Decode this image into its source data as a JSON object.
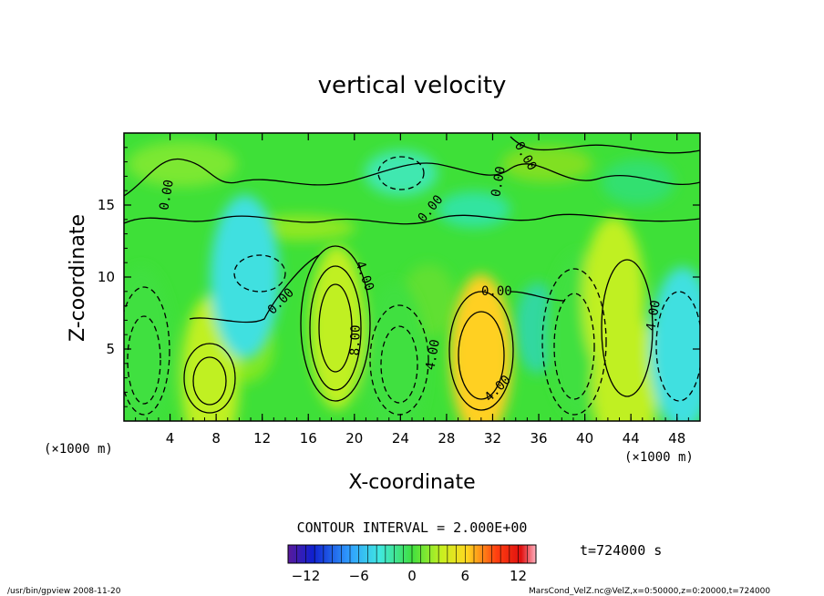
{
  "chart_data": {
    "type": "heatmap",
    "title": "vertical velocity",
    "xlabel": "X-coordinate",
    "ylabel": "Z-coordinate",
    "x_unit": "(×1000 m)",
    "y_unit": "(×1000 m)",
    "xlim": [
      0,
      50
    ],
    "ylim": [
      0,
      20
    ],
    "x_ticks": [
      4,
      8,
      12,
      16,
      20,
      24,
      28,
      32,
      36,
      40,
      44,
      48
    ],
    "y_ticks": [
      5,
      10,
      15
    ],
    "contour_interval_text": "CONTOUR INTERVAL = 2.000E+00",
    "contour_labels": [
      "0.00",
      "4.00",
      "8.00"
    ],
    "colorbar": {
      "range": [
        -14,
        14
      ],
      "tick_values": [
        -12,
        -6,
        0,
        6,
        12
      ],
      "tick_labels": [
        "−12",
        "−6",
        "0",
        "6",
        "12"
      ]
    },
    "cells": [
      {
        "x": 1.5,
        "z": 5,
        "value": -8
      },
      {
        "x": 7.5,
        "z": 3,
        "value": 12
      },
      {
        "x": 18.5,
        "z": 6.5,
        "value": 14
      },
      {
        "x": 23.5,
        "z": 4,
        "value": -8
      },
      {
        "x": 31,
        "z": 4.5,
        "value": 10
      },
      {
        "x": 39.5,
        "z": 6,
        "value": -8
      },
      {
        "x": 42.5,
        "z": 8.5,
        "value": 8
      },
      {
        "x": 43.5,
        "z": 2.5,
        "value": 6
      },
      {
        "x": 48.5,
        "z": 5,
        "value": -6
      },
      {
        "x": 10.5,
        "z": 10,
        "value": -4
      }
    ],
    "time_label": "t=724000 s"
  },
  "footer": {
    "left": "/usr/bin/gpview   2008-11-20",
    "right": "MarsCond_VelZ.nc@VelZ,x=0:50000,z=0:20000,t=724000"
  }
}
